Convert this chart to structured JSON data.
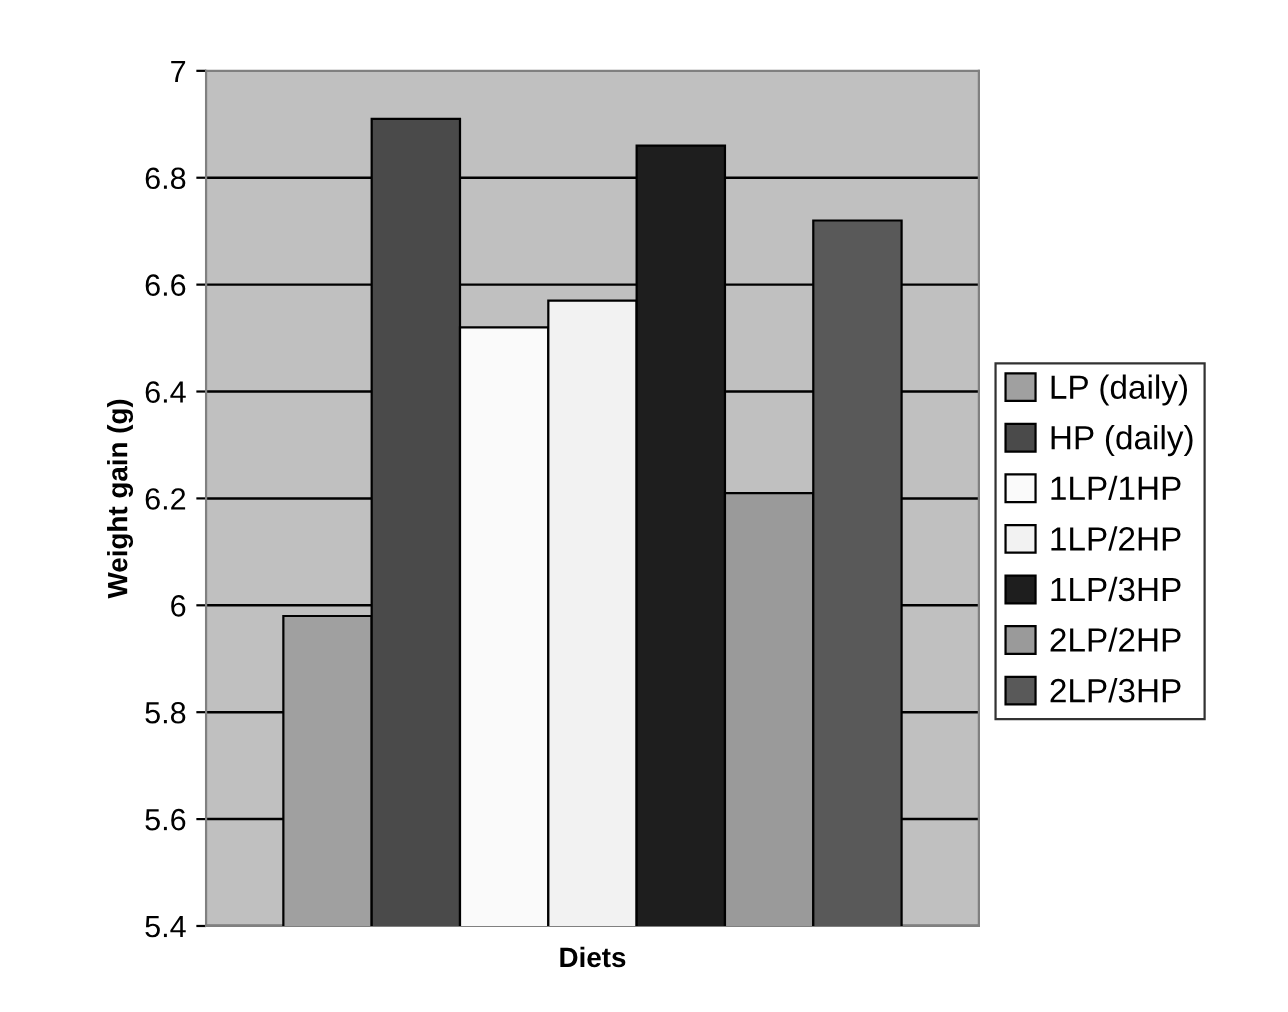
{
  "chart_data": {
    "type": "bar",
    "xlabel": "Diets",
    "ylabel": "Weight gain (g)",
    "categories": [
      null
    ],
    "series": [
      {
        "name": "LP (daily)",
        "color": "#a0a0a0",
        "values": [
          5.98
        ]
      },
      {
        "name": "HP (daily)",
        "color": "#4a4a4a",
        "values": [
          6.91
        ]
      },
      {
        "name": "1LP/1HP",
        "color": "#fafafa",
        "values": [
          6.52
        ]
      },
      {
        "name": "1LP/2HP",
        "color": "#f2f2f2",
        "values": [
          6.57
        ]
      },
      {
        "name": "1LP/3HP",
        "color": "#1e1e1e",
        "values": [
          6.86
        ]
      },
      {
        "name": "2LP/2HP",
        "color": "#9a9a9a",
        "values": [
          6.21
        ]
      },
      {
        "name": "2LP/3HP",
        "color": "#595959",
        "values": [
          6.72
        ]
      }
    ],
    "ylim": [
      5.4,
      7
    ],
    "yticks": [
      5.4,
      5.6,
      5.8,
      6,
      6.2,
      6.4,
      6.6,
      6.8,
      7
    ],
    "grid": "y",
    "legend": "right"
  }
}
